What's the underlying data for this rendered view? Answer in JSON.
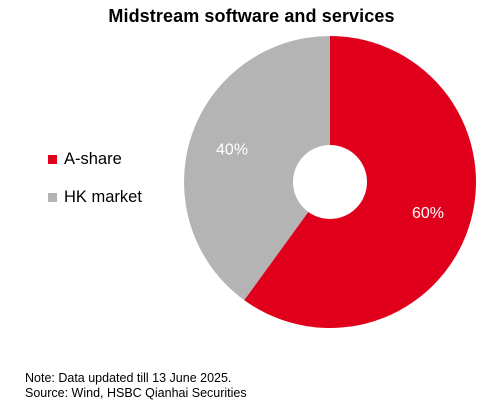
{
  "chart_data": {
    "type": "pie",
    "style": "donut",
    "title": "Midstream software and services",
    "categories": [
      "A-share",
      "HK market"
    ],
    "values": [
      60,
      40
    ],
    "data_labels": [
      "60%",
      "40%"
    ],
    "colors": [
      "#E0001B",
      "#B4B4B4"
    ],
    "legend_position": "left"
  },
  "notes": {
    "note": "Note: Data updated till 13 June 2025.",
    "source": "Source: Wind, HSBC Qianhai Securities"
  }
}
